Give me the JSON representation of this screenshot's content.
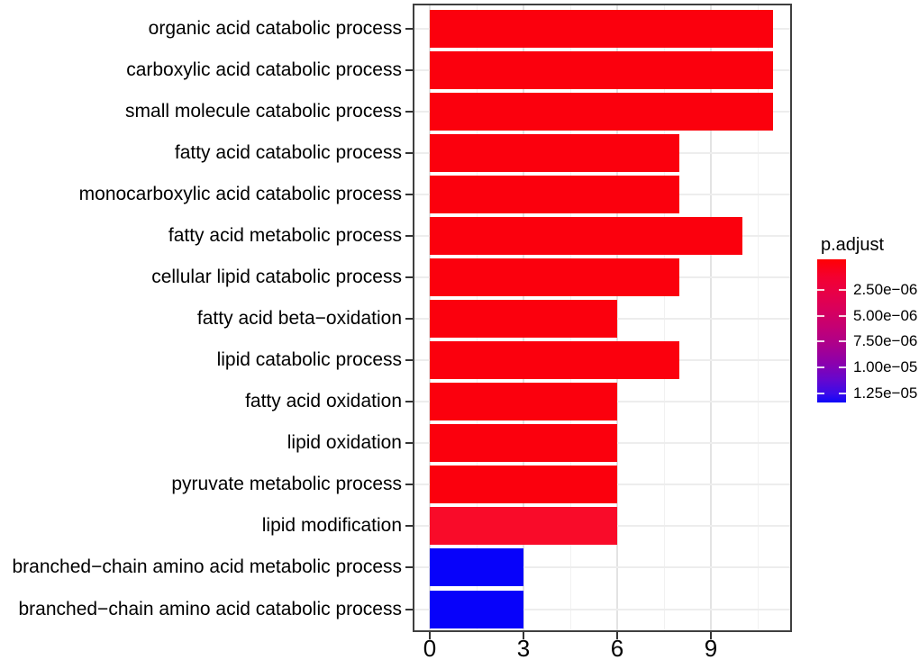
{
  "figure": {
    "background_color": "#FFFFFF",
    "panel_border_color": "#3F3F3F",
    "grid_major_color": "#E3E3E3",
    "grid_minor_color": "#F1F1F1"
  },
  "chart_data": {
    "type": "bar",
    "orientation": "horizontal",
    "title": "",
    "xlabel": "",
    "ylabel": "",
    "categories": [
      "organic acid catabolic process",
      "carboxylic acid catabolic process",
      "small molecule catabolic process",
      "fatty acid catabolic process",
      "monocarboxylic acid catabolic process",
      "fatty acid metabolic process",
      "cellular lipid catabolic process",
      "fatty acid beta−oxidation",
      "lipid catabolic process",
      "fatty acid oxidation",
      "lipid oxidation",
      "pyruvate metabolic process",
      "lipid modification",
      "branched−chain amino acid metabolic process",
      "branched−chain amino acid catabolic process"
    ],
    "values": [
      11,
      11,
      11,
      8,
      8,
      10,
      8,
      6,
      8,
      6,
      6,
      6,
      6,
      3,
      3
    ],
    "bar_colors": [
      "#FB000D",
      "#FB000D",
      "#FB000D",
      "#FB000D",
      "#FB000D",
      "#FB000D",
      "#FB000D",
      "#FB000D",
      "#FB000D",
      "#FB000D",
      "#FB000D",
      "#FB000D",
      "#F90B29",
      "#0702FA",
      "#0702FA"
    ],
    "p_adjust_approx": [
      5e-07,
      5e-07,
      5e-07,
      5e-07,
      5e-07,
      5e-07,
      5e-07,
      5e-07,
      5e-07,
      5e-07,
      5e-07,
      5e-07,
      2.5e-06,
      1.25e-05,
      1.25e-05
    ],
    "x_ticks": [
      {
        "label": "0",
        "value": 0
      },
      {
        "label": "3",
        "value": 3
      },
      {
        "label": "6",
        "value": 6
      },
      {
        "label": "9",
        "value": 9
      }
    ],
    "xlim": [
      0,
      11.6
    ],
    "grid": {
      "vertical_major": [
        0,
        3,
        6,
        9
      ],
      "vertical_minor": [
        1.5,
        4.5,
        7.5,
        10.5
      ],
      "horizontal_major": "at each category"
    },
    "legend": {
      "title": "p.adjust",
      "position": "right",
      "type": "colorbar-gradient",
      "top_color": "#FF0004",
      "bottom_color": "#0E06F9",
      "ticks": [
        {
          "label": "2.50e−06",
          "value": 2.5e-06
        },
        {
          "label": "5.00e−06",
          "value": 5e-06
        },
        {
          "label": "7.50e−06",
          "value": 7.5e-06
        },
        {
          "label": "1.00e−05",
          "value": 1e-05
        },
        {
          "label": "1.25e−05",
          "value": 1.25e-05
        }
      ]
    }
  }
}
